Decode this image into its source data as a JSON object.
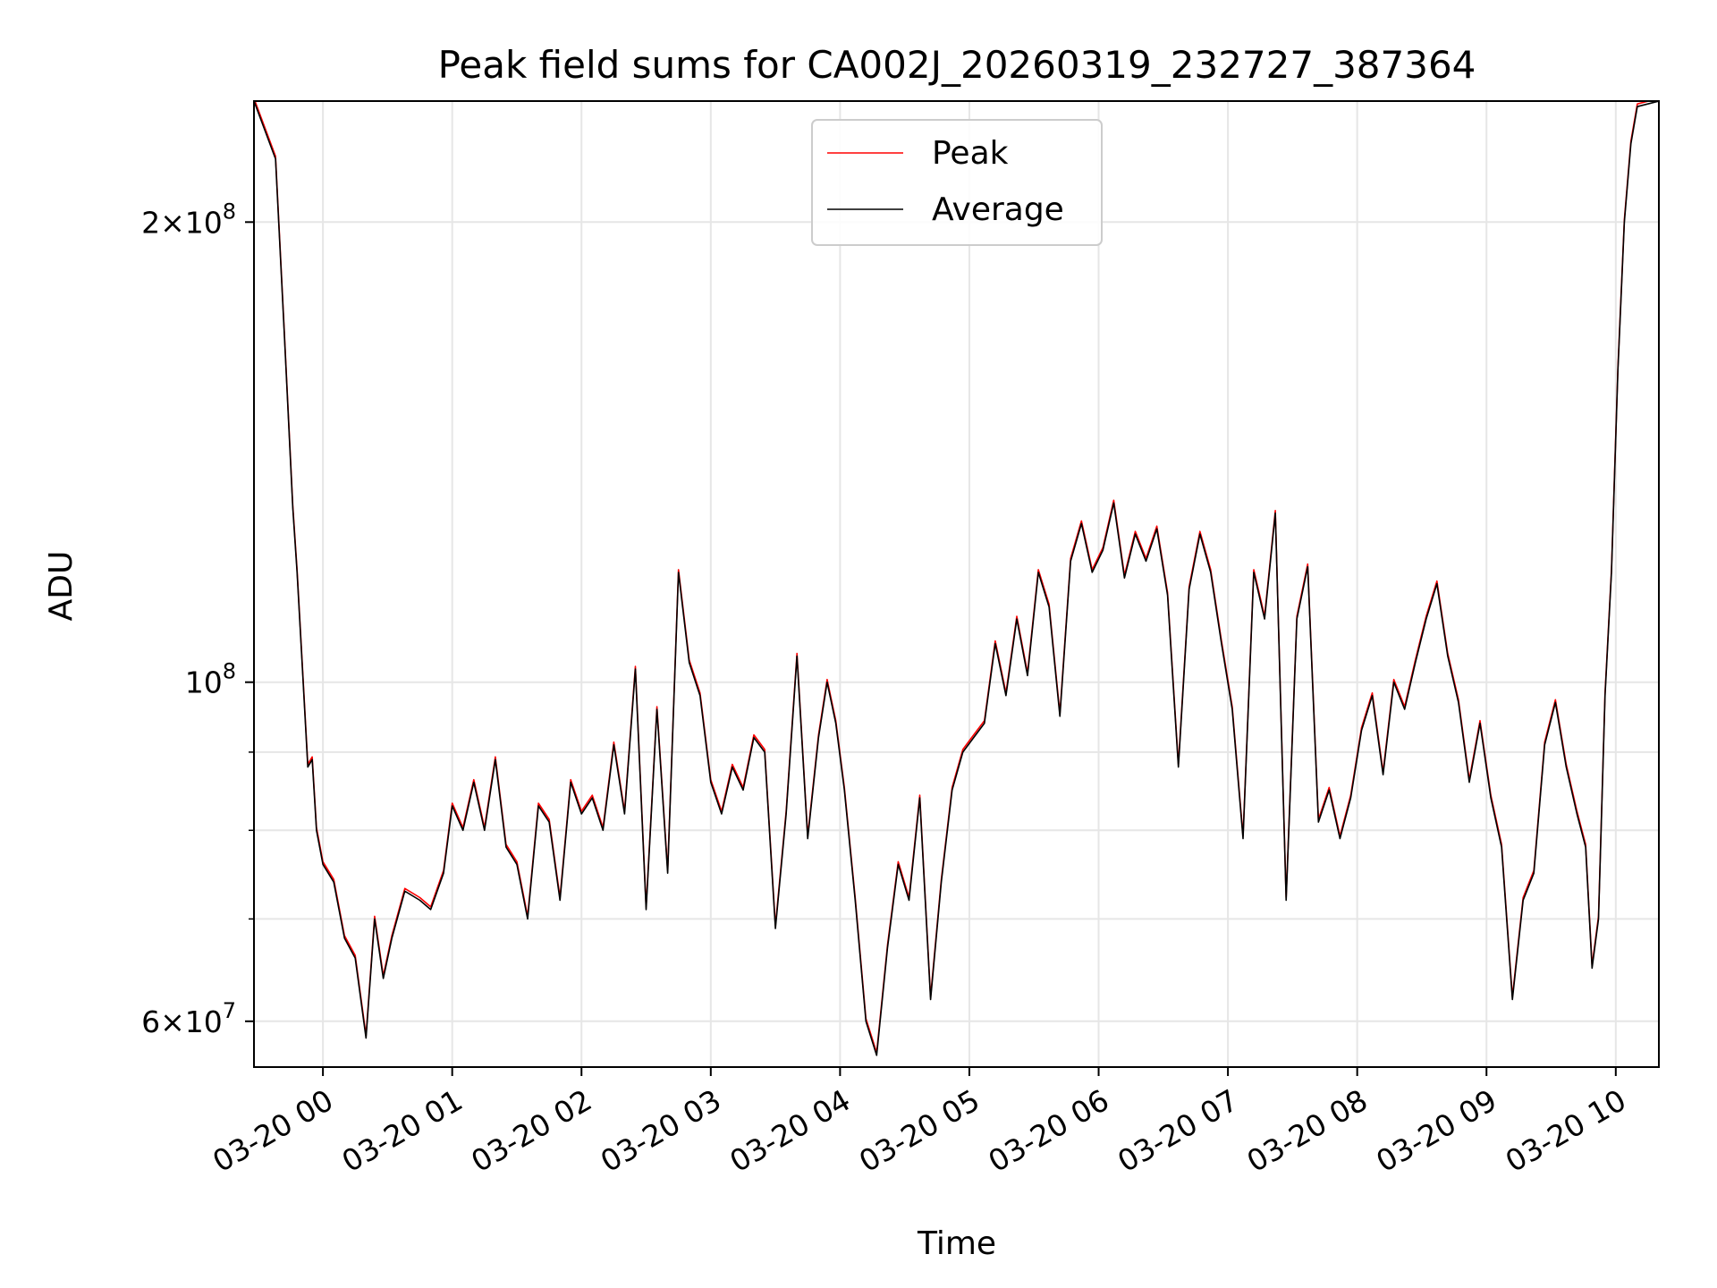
{
  "chart_data": {
    "type": "line",
    "title": "Peak field sums for CA002J_20260319_232727_387364",
    "xlabel": "Time",
    "ylabel": "ADU",
    "yscale": "log",
    "ylim": [
      56000000,
      240000000
    ],
    "xlim": [
      "2026-03-19 23:28",
      "2026-03-20 10:20"
    ],
    "grid": true,
    "legend_position": "upper-center",
    "x_ticks": [
      {
        "t": "2026-03-20 00:00",
        "label": "03-20 00"
      },
      {
        "t": "2026-03-20 01:00",
        "label": "03-20 01"
      },
      {
        "t": "2026-03-20 02:00",
        "label": "03-20 02"
      },
      {
        "t": "2026-03-20 03:00",
        "label": "03-20 03"
      },
      {
        "t": "2026-03-20 04:00",
        "label": "03-20 04"
      },
      {
        "t": "2026-03-20 05:00",
        "label": "03-20 05"
      },
      {
        "t": "2026-03-20 06:00",
        "label": "03-20 06"
      },
      {
        "t": "2026-03-20 07:00",
        "label": "03-20 07"
      },
      {
        "t": "2026-03-20 08:00",
        "label": "03-20 08"
      },
      {
        "t": "2026-03-20 09:00",
        "label": "03-20 09"
      },
      {
        "t": "2026-03-20 10:00",
        "label": "03-20 10"
      }
    ],
    "y_ticks_major": [
      {
        "v": 60000000,
        "mantissa": "6",
        "base": "10",
        "exp": "7"
      },
      {
        "v": 100000000,
        "mantissa": "",
        "base": "10",
        "exp": "8"
      },
      {
        "v": 200000000,
        "mantissa": "2",
        "base": "10",
        "exp": "8"
      }
    ],
    "y_ticks_minor": [
      70000000,
      80000000,
      90000000
    ],
    "series": [
      {
        "name": "Peak",
        "color": "#ff0000",
        "offset": 0.004
      },
      {
        "name": "Average",
        "color": "#000000",
        "offset": 0.0
      }
    ],
    "x": [
      "2026-03-19 23:28",
      "2026-03-19 23:38",
      "2026-03-19 23:42",
      "2026-03-19 23:46",
      "2026-03-19 23:48",
      "2026-03-19 23:50",
      "2026-03-19 23:53",
      "2026-03-19 23:55",
      "2026-03-19 23:57",
      "2026-03-20 00:00",
      "2026-03-20 00:05",
      "2026-03-20 00:10",
      "2026-03-20 00:15",
      "2026-03-20 00:20",
      "2026-03-20 00:24",
      "2026-03-20 00:28",
      "2026-03-20 00:32",
      "2026-03-20 00:38",
      "2026-03-20 00:45",
      "2026-03-20 00:50",
      "2026-03-20 00:56",
      "2026-03-20 01:00",
      "2026-03-20 01:05",
      "2026-03-20 01:10",
      "2026-03-20 01:15",
      "2026-03-20 01:20",
      "2026-03-20 01:25",
      "2026-03-20 01:30",
      "2026-03-20 01:35",
      "2026-03-20 01:40",
      "2026-03-20 01:45",
      "2026-03-20 01:50",
      "2026-03-20 01:55",
      "2026-03-20 02:00",
      "2026-03-20 02:05",
      "2026-03-20 02:10",
      "2026-03-20 02:15",
      "2026-03-20 02:20",
      "2026-03-20 02:25",
      "2026-03-20 02:30",
      "2026-03-20 02:35",
      "2026-03-20 02:40",
      "2026-03-20 02:45",
      "2026-03-20 02:50",
      "2026-03-20 02:55",
      "2026-03-20 03:00",
      "2026-03-20 03:05",
      "2026-03-20 03:10",
      "2026-03-20 03:15",
      "2026-03-20 03:20",
      "2026-03-20 03:25",
      "2026-03-20 03:30",
      "2026-03-20 03:35",
      "2026-03-20 03:40",
      "2026-03-20 03:45",
      "2026-03-20 03:50",
      "2026-03-20 03:54",
      "2026-03-20 03:58",
      "2026-03-20 04:02",
      "2026-03-20 04:07",
      "2026-03-20 04:12",
      "2026-03-20 04:17",
      "2026-03-20 04:22",
      "2026-03-20 04:27",
      "2026-03-20 04:32",
      "2026-03-20 04:37",
      "2026-03-20 04:42",
      "2026-03-20 04:47",
      "2026-03-20 04:52",
      "2026-03-20 04:57",
      "2026-03-20 05:02",
      "2026-03-20 05:07",
      "2026-03-20 05:12",
      "2026-03-20 05:17",
      "2026-03-20 05:22",
      "2026-03-20 05:27",
      "2026-03-20 05:32",
      "2026-03-20 05:37",
      "2026-03-20 05:42",
      "2026-03-20 05:47",
      "2026-03-20 05:52",
      "2026-03-20 05:57",
      "2026-03-20 06:02",
      "2026-03-20 06:07",
      "2026-03-20 06:12",
      "2026-03-20 06:17",
      "2026-03-20 06:22",
      "2026-03-20 06:27",
      "2026-03-20 06:32",
      "2026-03-20 06:37",
      "2026-03-20 06:42",
      "2026-03-20 06:47",
      "2026-03-20 06:52",
      "2026-03-20 06:57",
      "2026-03-20 07:02",
      "2026-03-20 07:07",
      "2026-03-20 07:12",
      "2026-03-20 07:17",
      "2026-03-20 07:22",
      "2026-03-20 07:27",
      "2026-03-20 07:32",
      "2026-03-20 07:37",
      "2026-03-20 07:42",
      "2026-03-20 07:47",
      "2026-03-20 07:52",
      "2026-03-20 07:57",
      "2026-03-20 08:02",
      "2026-03-20 08:07",
      "2026-03-20 08:12",
      "2026-03-20 08:17",
      "2026-03-20 08:22",
      "2026-03-20 08:27",
      "2026-03-20 08:32",
      "2026-03-20 08:37",
      "2026-03-20 08:42",
      "2026-03-20 08:47",
      "2026-03-20 08:52",
      "2026-03-20 08:57",
      "2026-03-20 09:02",
      "2026-03-20 09:07",
      "2026-03-20 09:12",
      "2026-03-20 09:17",
      "2026-03-20 09:22",
      "2026-03-20 09:27",
      "2026-03-20 09:32",
      "2026-03-20 09:37",
      "2026-03-20 09:42",
      "2026-03-20 09:46",
      "2026-03-20 09:49",
      "2026-03-20 09:52",
      "2026-03-20 09:55",
      "2026-03-20 09:58",
      "2026-03-20 10:01",
      "2026-03-20 10:04",
      "2026-03-20 10:07",
      "2026-03-20 10:10",
      "2026-03-20 10:20"
    ],
    "values": [
      240000000,
      220000000,
      170000000,
      130000000,
      118000000,
      105000000,
      88000000,
      89000000,
      80000000,
      76000000,
      74000000,
      68000000,
      66000000,
      58500000,
      70000000,
      64000000,
      68000000,
      73000000,
      72000000,
      71000000,
      75000000,
      83000000,
      80000000,
      86000000,
      80000000,
      89000000,
      78000000,
      76000000,
      70000000,
      83000000,
      81000000,
      72000000,
      86000000,
      82000000,
      84000000,
      80000000,
      91000000,
      82000000,
      102000000,
      71000000,
      96000000,
      75000000,
      118000000,
      103000000,
      98000000,
      86000000,
      82000000,
      88000000,
      85000000,
      92000000,
      90000000,
      69000000,
      82000000,
      104000000,
      79000000,
      92000000,
      100000000,
      94000000,
      85000000,
      72000000,
      60000000,
      57000000,
      67000000,
      76000000,
      72000000,
      84000000,
      62000000,
      74000000,
      85000000,
      90000000,
      92000000,
      94000000,
      106000000,
      98000000,
      110000000,
      101000000,
      118000000,
      112000000,
      95000000,
      120000000,
      127000000,
      118000000,
      122000000,
      131000000,
      117000000,
      125000000,
      120000000,
      126000000,
      114000000,
      88000000,
      115000000,
      125000000,
      118000000,
      106000000,
      96000000,
      79000000,
      118000000,
      110000000,
      129000000,
      72000000,
      110000000,
      119000000,
      81000000,
      85000000,
      79000000,
      84000000,
      93000000,
      98000000,
      87000000,
      100000000,
      96000000,
      103000000,
      110000000,
      116000000,
      104000000,
      97000000,
      86000000,
      94000000,
      84000000,
      78000000,
      62000000,
      72000000,
      75000000,
      91000000,
      97000000,
      88000000,
      82000000,
      78000000,
      65000000,
      70000000,
      98000000,
      118000000,
      160000000,
      200000000,
      225000000,
      238000000,
      240000000
    ]
  },
  "legend": {
    "entries": [
      {
        "label": "Peak",
        "color": "#ff0000"
      },
      {
        "label": "Average",
        "color": "#000000"
      }
    ]
  }
}
